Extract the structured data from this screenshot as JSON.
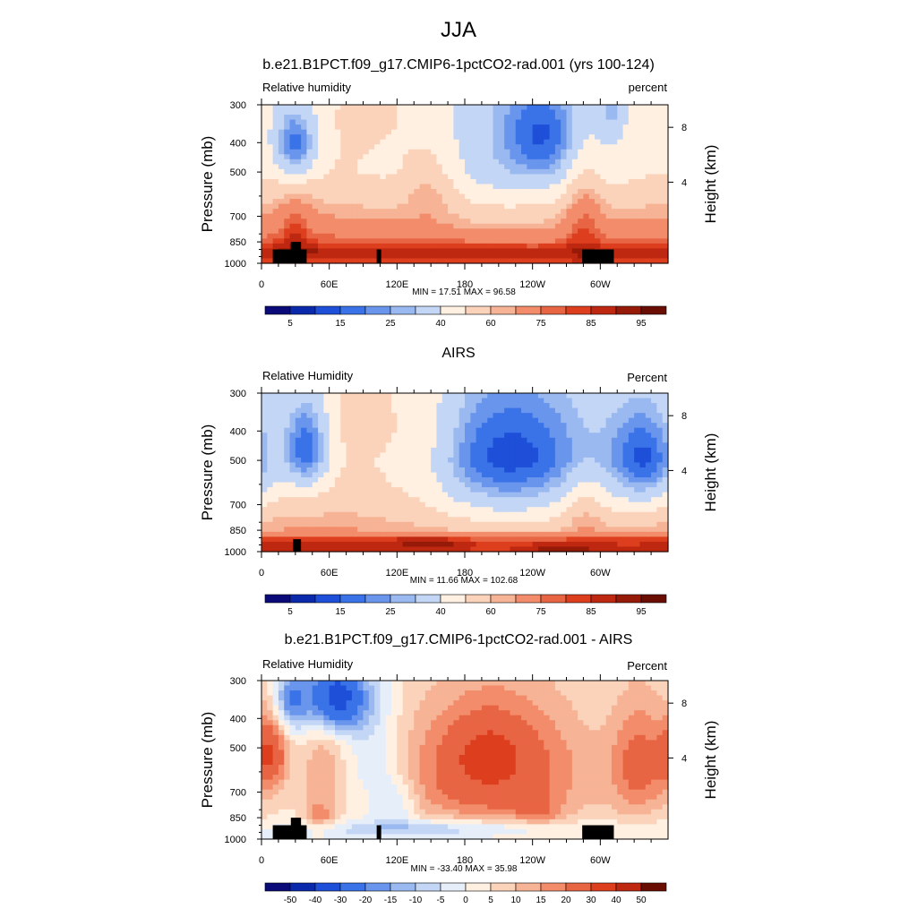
{
  "figure": {
    "title": "JJA",
    "y_axis_label": "Pressure (mb)",
    "y2_axis_label": "Height (km)",
    "x_ticks": [
      "0",
      "60E",
      "120E",
      "180",
      "120W",
      "60W"
    ],
    "y_ticks": [
      "300",
      "400",
      "500",
      "700",
      "850",
      "1000"
    ],
    "height_ticks": [
      "8",
      "4"
    ],
    "colors": {
      "abs_levels": [
        "#0a0a78",
        "#0a2aab",
        "#1e4fd8",
        "#3a72e8",
        "#6996ec",
        "#9ab9f0",
        "#c3d6f5",
        "#fff0e2",
        "#fbd3bb",
        "#f7b395",
        "#f28c6a",
        "#e86544",
        "#dd3e1e",
        "#be2810",
        "#961a08",
        "#6a0e04"
      ],
      "diff_levels": [
        "#0a0a78",
        "#0a2aab",
        "#1e4fd8",
        "#3a72e8",
        "#6996ec",
        "#9ab9f0",
        "#c3d6f5",
        "#e6eefa",
        "#fff0e2",
        "#fbd3bb",
        "#f7b395",
        "#f28c6a",
        "#e86544",
        "#dd3e1e",
        "#be2810",
        "#6a0e04"
      ],
      "topography": "#000000"
    }
  },
  "panels": [
    {
      "title": "b.e21.B1PCT.f09_g17.CMIP6-1pctCO2-rad.001 (yrs 100-124)",
      "left_label": "Relative humidity",
      "right_label": "percent",
      "min_max": "MIN =  17.51  MAX =  96.58",
      "colorbar_labels": [
        "5",
        "15",
        "25",
        "40",
        "60",
        "75",
        "85",
        "95"
      ]
    },
    {
      "title": "AIRS",
      "left_label": "Relative Humidity",
      "right_label": "Percent",
      "min_max": "MIN =  11.66  MAX = 102.68",
      "colorbar_labels": [
        "5",
        "15",
        "25",
        "40",
        "60",
        "75",
        "85",
        "95"
      ]
    },
    {
      "title": "b.e21.B1PCT.f09_g17.CMIP6-1pctCO2-rad.001 - AIRS",
      "left_label": "Relative Humidity",
      "right_label": "Percent",
      "min_max": "MIN = -33.40  MAX =  35.98",
      "colorbar_labels": [
        "-50",
        "-40",
        "-30",
        "-20",
        "-15",
        "-10",
        "-5",
        "0",
        "5",
        "10",
        "15",
        "20",
        "30",
        "40",
        "50"
      ]
    }
  ],
  "chart_data": [
    {
      "type": "heatmap",
      "title": "b.e21.B1PCT.f09_g17.CMIP6-1pctCO2-rad.001 (yrs 100-124)",
      "variable": "Relative humidity",
      "units": "percent",
      "xlabel": "",
      "ylabel": "Pressure (mb)",
      "y2label": "Height (km)",
      "x_range": [
        0,
        360
      ],
      "y_range": [
        300,
        1000
      ],
      "min": 17.51,
      "max": 96.58,
      "levels": [
        5,
        10,
        15,
        20,
        25,
        30,
        40,
        50,
        60,
        65,
        75,
        80,
        85,
        90,
        95
      ],
      "base": [
        [
          300,
          48
        ],
        [
          500,
          52
        ],
        [
          700,
          66
        ],
        [
          850,
          76
        ],
        [
          925,
          86
        ],
        [
          1000,
          80
        ]
      ],
      "features": [
        {
          "lon": 30,
          "p": 400,
          "sx": 14,
          "sy": 80,
          "amp": -32
        },
        {
          "lon": 120,
          "p": 300,
          "sx": 45,
          "sy": 110,
          "amp": 8
        },
        {
          "lon": 150,
          "p": 550,
          "sx": 18,
          "sy": 110,
          "amp": 14
        },
        {
          "lon": 215,
          "p": 420,
          "sx": 70,
          "sy": 260,
          "amp": -18
        },
        {
          "lon": 250,
          "p": 380,
          "sx": 25,
          "sy": 100,
          "amp": -20
        },
        {
          "lon": 285,
          "p": 650,
          "sx": 12,
          "sy": 200,
          "amp": 16
        },
        {
          "lon": 310,
          "p": 300,
          "sx": 8,
          "sy": 60,
          "amp": -15
        },
        {
          "lon": 30,
          "p": 750,
          "sx": 10,
          "sy": 120,
          "amp": 12
        },
        {
          "lon": 120,
          "p": 900,
          "sx": 150,
          "sy": 60,
          "amp": 6
        }
      ],
      "topography": [
        [
          10,
          40,
          900
        ],
        [
          26,
          35,
          850
        ],
        [
          102,
          106,
          900
        ],
        [
          284,
          312,
          900
        ]
      ]
    },
    {
      "type": "heatmap",
      "title": "AIRS",
      "variable": "Relative Humidity",
      "units": "Percent",
      "xlabel": "",
      "ylabel": "Pressure (mb)",
      "y2label": "Height (km)",
      "x_range": [
        0,
        360
      ],
      "y_range": [
        300,
        1000
      ],
      "min": 11.66,
      "max": 102.68,
      "levels": [
        5,
        10,
        15,
        20,
        25,
        30,
        40,
        50,
        60,
        65,
        75,
        80,
        85,
        90,
        95
      ],
      "base": [
        [
          300,
          46
        ],
        [
          500,
          46
        ],
        [
          700,
          58
        ],
        [
          850,
          66
        ],
        [
          925,
          86
        ],
        [
          1000,
          86
        ]
      ],
      "features": [
        {
          "lon": 40,
          "p": 450,
          "sx": 14,
          "sy": 120,
          "amp": -32
        },
        {
          "lon": 100,
          "p": 400,
          "sx": 40,
          "sy": 150,
          "amp": 10
        },
        {
          "lon": 150,
          "p": 450,
          "sx": 20,
          "sy": 150,
          "amp": 8
        },
        {
          "lon": 220,
          "p": 500,
          "sx": 60,
          "sy": 220,
          "amp": -34
        },
        {
          "lon": 340,
          "p": 500,
          "sx": 22,
          "sy": 150,
          "amp": -28
        },
        {
          "lon": 150,
          "p": 930,
          "sx": 25,
          "sy": 40,
          "amp": 10
        },
        {
          "lon": 260,
          "p": 980,
          "sx": 25,
          "sy": 30,
          "amp": 8
        },
        {
          "lon": 285,
          "p": 700,
          "sx": 12,
          "sy": 150,
          "amp": 10
        }
      ],
      "topography": [
        [
          28,
          35,
          910
        ]
      ]
    },
    {
      "type": "heatmap",
      "title": "b.e21.B1PCT.f09_g17.CMIP6-1pctCO2-rad.001 - AIRS",
      "variable": "Relative Humidity",
      "units": "Percent",
      "xlabel": "",
      "ylabel": "Pressure (mb)",
      "y2label": "Height (km)",
      "x_range": [
        0,
        360
      ],
      "y_range": [
        300,
        1000
      ],
      "min": -33.4,
      "max": 35.98,
      "levels": [
        -50,
        -40,
        -30,
        -20,
        -15,
        -10,
        -5,
        0,
        5,
        10,
        15,
        20,
        30,
        40,
        50
      ],
      "base": [
        [
          300,
          3
        ],
        [
          500,
          4
        ],
        [
          700,
          5
        ],
        [
          850,
          4
        ],
        [
          925,
          0
        ],
        [
          1000,
          0
        ]
      ],
      "features": [
        {
          "lon": 65,
          "p": 340,
          "sx": 20,
          "sy": 70,
          "amp": -40
        },
        {
          "lon": 25,
          "p": 350,
          "sx": 10,
          "sy": 60,
          "amp": -20
        },
        {
          "lon": 8,
          "p": 520,
          "sx": 10,
          "sy": 100,
          "amp": 25
        },
        {
          "lon": 55,
          "p": 600,
          "sx": 12,
          "sy": 200,
          "amp": 10
        },
        {
          "lon": 100,
          "p": 550,
          "sx": 18,
          "sy": 200,
          "amp": -10
        },
        {
          "lon": 205,
          "p": 580,
          "sx": 55,
          "sy": 220,
          "amp": 24
        },
        {
          "lon": 200,
          "p": 520,
          "sx": 20,
          "sy": 80,
          "amp": 10
        },
        {
          "lon": 245,
          "p": 820,
          "sx": 15,
          "sy": 60,
          "amp": 8
        },
        {
          "lon": 335,
          "p": 560,
          "sx": 18,
          "sy": 180,
          "amp": 18
        },
        {
          "lon": 160,
          "p": 920,
          "sx": 70,
          "sy": 50,
          "amp": -12
        },
        {
          "lon": 120,
          "p": 760,
          "sx": 12,
          "sy": 100,
          "amp": -10
        },
        {
          "lon": 50,
          "p": 840,
          "sx": 8,
          "sy": 50,
          "amp": 12
        }
      ],
      "topography": [
        [
          10,
          40,
          900
        ],
        [
          26,
          35,
          850
        ],
        [
          102,
          106,
          900
        ],
        [
          284,
          312,
          900
        ]
      ]
    }
  ]
}
